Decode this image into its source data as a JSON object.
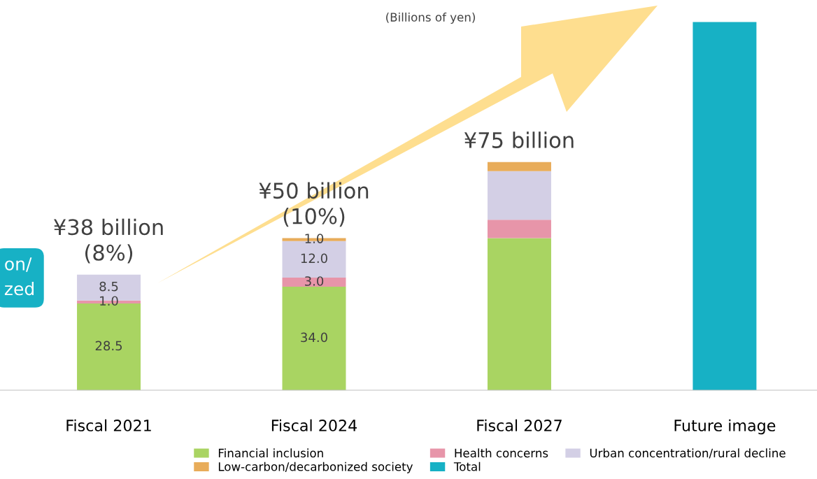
{
  "chart_data": {
    "type": "bar",
    "stacked": true,
    "categories": [
      "Fiscal 2021",
      "Fiscal 2024",
      "Fiscal 2027",
      "Future image"
    ],
    "series": [
      {
        "name": "Financial inclusion",
        "color": "#a9d462",
        "values": [
          28.5,
          34.0,
          50,
          null
        ],
        "value_labels": [
          "28.5",
          "34.0",
          null,
          null
        ]
      },
      {
        "name": "Health concerns",
        "color": "#e795a9",
        "values": [
          1.0,
          3.0,
          6,
          null
        ],
        "value_labels": [
          "1.0",
          "3.0",
          null,
          null
        ]
      },
      {
        "name": "Urban concentration/rural decline",
        "color": "#d3cfe5",
        "values": [
          8.5,
          12.0,
          16,
          null
        ],
        "value_labels": [
          "8.5",
          "12.0",
          null,
          null
        ]
      },
      {
        "name": "Low-carbon/decarbonized society",
        "color": "#e8ac5a",
        "values": [
          null,
          1.0,
          3,
          null
        ],
        "value_labels": [
          null,
          "1.0",
          null,
          null
        ]
      },
      {
        "name": "Total",
        "color": "#17b1c5",
        "values": [
          null,
          null,
          null,
          121
        ]
      }
    ],
    "annotations": [
      {
        "text": "¥38 billion\n(8%)",
        "x": "Fiscal 2021",
        "y": 38
      },
      {
        "text": "¥50 billion\n(10%)",
        "x": "Fiscal 2024",
        "y": 50
      },
      {
        "text": "¥75 billion",
        "x": "Fiscal 2027",
        "y": 75
      },
      "(Billions of yen)",
      "on/\nzed"
    ],
    "legend": "bottom",
    "grid": false
  }
}
